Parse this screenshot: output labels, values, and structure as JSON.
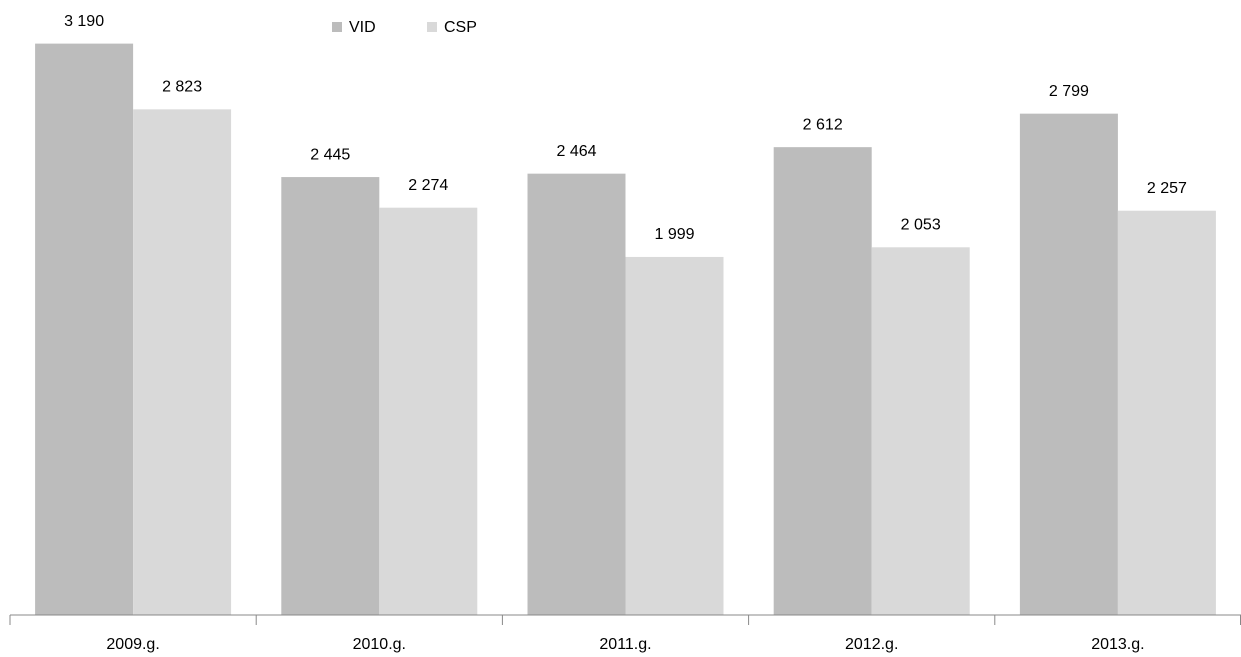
{
  "chart_data": {
    "type": "bar",
    "categories": [
      "2009.g.",
      "2010.g.",
      "2011.g.",
      "2012.g.",
      "2013.g."
    ],
    "series": [
      {
        "name": "VID",
        "color": "#bcbcbc",
        "values": [
          3190,
          2445,
          2464,
          2612,
          2799
        ],
        "value_labels": [
          "3 190",
          "2 445",
          "2 464",
          "2 612",
          "2 799"
        ]
      },
      {
        "name": "CSP",
        "color": "#d9d9d9",
        "values": [
          2823,
          2274,
          1999,
          2053,
          2257
        ],
        "value_labels": [
          "2 823",
          "2 274",
          "1 999",
          "2 053",
          "2 257"
        ]
      }
    ],
    "ylim": [
      0,
      3400
    ],
    "legend": "top"
  }
}
